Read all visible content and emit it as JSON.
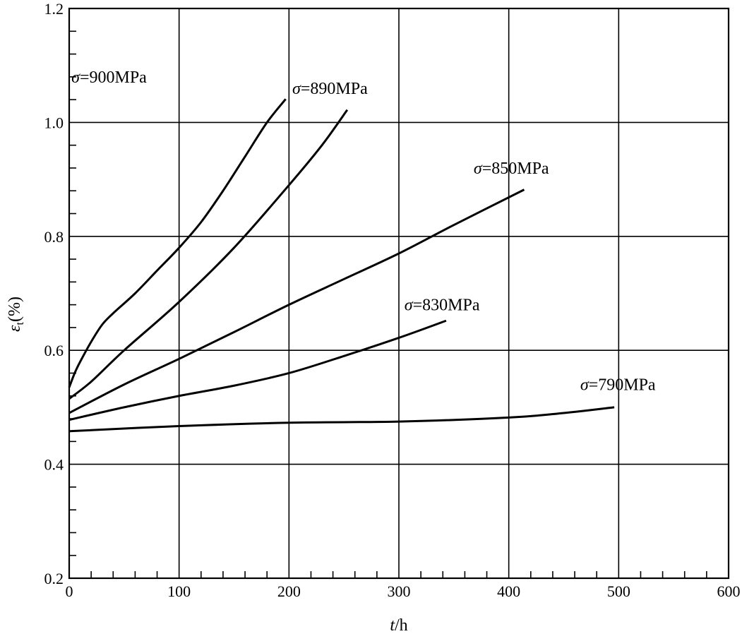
{
  "chart_data": {
    "type": "line",
    "title": "",
    "xlabel_italic": "t",
    "xlabel_rest": "/h",
    "ylabel_symbol": "ε",
    "ylabel_sub": "t",
    "ylabel_rest": "(%)",
    "xlim": [
      0,
      600
    ],
    "ylim": [
      0.2,
      1.2
    ],
    "xticks": [
      0,
      100,
      200,
      300,
      400,
      500,
      600
    ],
    "yticks": [
      "0.2",
      "0.4",
      "0.6",
      "0.8",
      "1.0",
      "1.2"
    ],
    "x_minor_step": 20,
    "y_minor_step": 0.04,
    "grid": true,
    "series": [
      {
        "name": "σ=900MPa",
        "label_sym": "σ",
        "label_text": "=900MPa",
        "label_at": [
          2,
          1.07
        ],
        "x": [
          0,
          5,
          10,
          20,
          30,
          40,
          60,
          80,
          100,
          120,
          140,
          160,
          180,
          197
        ],
        "y": [
          0.535,
          0.56,
          0.58,
          0.615,
          0.645,
          0.665,
          0.7,
          0.74,
          0.78,
          0.825,
          0.88,
          0.94,
          1.0,
          1.041
        ]
      },
      {
        "name": "σ=890MPa",
        "label_sym": "σ",
        "label_text": "=890MPa",
        "label_at": [
          203,
          1.05
        ],
        "x": [
          0,
          20,
          50,
          100,
          150,
          200,
          230,
          253
        ],
        "y": [
          0.515,
          0.545,
          0.6,
          0.685,
          0.78,
          0.89,
          0.96,
          1.022
        ]
      },
      {
        "name": "σ=850MPa",
        "label_sym": "σ",
        "label_text": "=850MPa",
        "label_at": [
          368,
          0.91
        ],
        "x": [
          0,
          50,
          100,
          150,
          200,
          250,
          300,
          350,
          414
        ],
        "y": [
          0.49,
          0.54,
          0.585,
          0.632,
          0.68,
          0.725,
          0.77,
          0.82,
          0.882
        ]
      },
      {
        "name": "σ=830MPa",
        "label_sym": "σ",
        "label_text": "=830MPa",
        "label_at": [
          305,
          0.67
        ],
        "x": [
          0,
          50,
          100,
          150,
          200,
          250,
          300,
          343
        ],
        "y": [
          0.478,
          0.5,
          0.52,
          0.538,
          0.56,
          0.59,
          0.622,
          0.652
        ]
      },
      {
        "name": "σ=790MPa",
        "label_sym": "σ",
        "label_text": "=790MPa",
        "label_at": [
          465,
          0.53
        ],
        "x": [
          0,
          100,
          200,
          300,
          400,
          450,
          496
        ],
        "y": [
          0.458,
          0.467,
          0.473,
          0.475,
          0.482,
          0.49,
          0.5
        ]
      }
    ]
  }
}
